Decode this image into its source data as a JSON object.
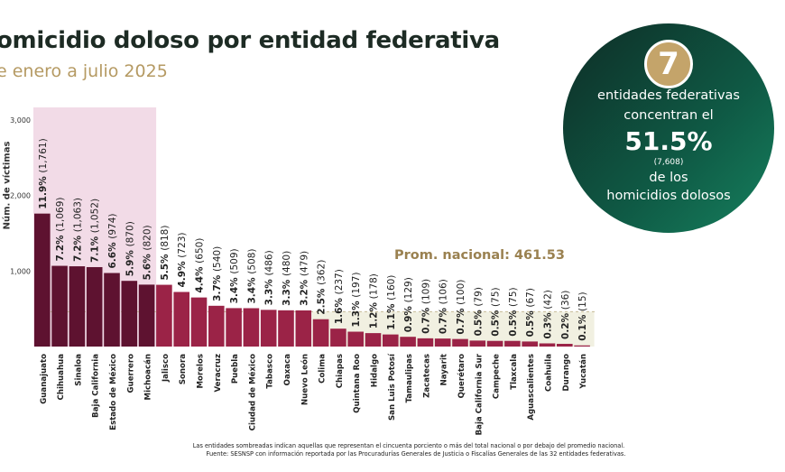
{
  "header": {
    "title": "omicidio doloso por entidad federativa",
    "subtitle": "e enero a julio 2025"
  },
  "badge": {
    "number": "7",
    "line1": "entidades federativas",
    "line2": "concentran el",
    "percent": "51.5%",
    "count": "(7,608)",
    "line3": "de los",
    "line4": "homicidios dolosos"
  },
  "footer": {
    "line1": "Las entidades sombreadas indican aquellas que representan el cincuenta porciento o más del total nacional o por debajo del promedio nacional.",
    "line2": "Fuente: SESNSP con información reportada por las Procuradurías Generales de Justicia o Fiscalías Generales de las 32 entidades federativas."
  },
  "colors": {
    "top_bar": "#5e1230",
    "other_bar": "#9b2347",
    "top_band": "#f2dbe7",
    "avg_band": "#f1f0e1",
    "avg_label": "#9a8150"
  },
  "chart_data": {
    "type": "bar",
    "title": "",
    "xlabel": "",
    "ylabel": "Núm. de víctimas",
    "ylim": [
      0,
      3000
    ],
    "yticks": [
      "1,000",
      "2,000",
      "3,000"
    ],
    "ytick_values": [
      1000,
      2000,
      3000
    ],
    "average": 461.53,
    "average_label": "Prom. nacional: 461.53",
    "top_group_count": 7,
    "categories": [
      "Guanajuato",
      "Chihuahua",
      "Sinaloa",
      "Baja California",
      "Estado de México",
      "Guerrero",
      "Michoacán",
      "Jalisco",
      "Sonora",
      "Morelos",
      "Veracruz",
      "Puebla",
      "Ciudad de México",
      "Tabasco",
      "Oaxaca",
      "Nuevo León",
      "Colima",
      "Chiapas",
      "Quintana Roo",
      "Hidalgo",
      "San Luis Potosí",
      "Tamaulipas",
      "Zacatecas",
      "Nayarit",
      "Querétaro",
      "Baja California Sur",
      "Campeche",
      "Tlaxcala",
      "Aguascalientes",
      "Coahuila",
      "Durango",
      "Yucatán"
    ],
    "values": [
      1761,
      1069,
      1063,
      1052,
      974,
      870,
      820,
      818,
      723,
      650,
      540,
      509,
      508,
      486,
      480,
      479,
      362,
      237,
      197,
      178,
      160,
      129,
      109,
      106,
      100,
      79,
      75,
      75,
      67,
      42,
      36,
      15
    ],
    "percent_labels": [
      "11.9%",
      "7.2%",
      "7.2%",
      "7.1%",
      "6.6%",
      "5.9%",
      "5.6%",
      "5.5%",
      "4.9%",
      "4.4%",
      "3.7%",
      "3.4%",
      "3.4%",
      "3.3%",
      "3.3%",
      "3.2%",
      "2.5%",
      "1.6%",
      "1.3%",
      "1.2%",
      "1.1%",
      "0.9%",
      "0.7%",
      "0.7%",
      "0.7%",
      "0.5%",
      "0.5%",
      "0.5%",
      "0.5%",
      "0.3%",
      "0.2%",
      "0.1%"
    ],
    "count_labels": [
      "(1,761)",
      "(1,069)",
      "(1,063)",
      "(1,052)",
      "(974)",
      "(870)",
      "(820)",
      "(818)",
      "(723)",
      "(650)",
      "(540)",
      "(509)",
      "(508)",
      "(486)",
      "(480)",
      "(479)",
      "(362)",
      "(237)",
      "(197)",
      "(178)",
      "(160)",
      "(129)",
      "(109)",
      "(106)",
      "(100)",
      "(79)",
      "(75)",
      "(75)",
      "(67)",
      "(42)",
      "(36)",
      "(15)"
    ]
  }
}
